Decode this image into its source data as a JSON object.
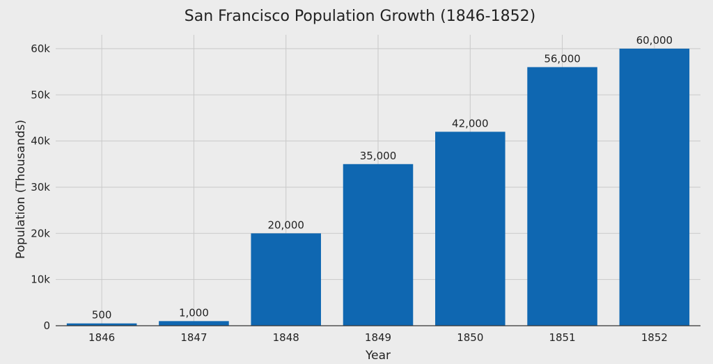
{
  "chart_data": {
    "type": "bar",
    "title": "San Francisco Population Growth (1846-1852)",
    "xlabel": "Year",
    "ylabel": "Population (Thousands)",
    "categories": [
      "1846",
      "1847",
      "1848",
      "1849",
      "1850",
      "1851",
      "1852"
    ],
    "values": [
      500,
      1000,
      20000,
      35000,
      42000,
      56000,
      60000
    ],
    "data_labels": [
      "500",
      "1,000",
      "20,000",
      "35,000",
      "42,000",
      "56,000",
      "60,000"
    ],
    "ylim": [
      0,
      63000
    ],
    "yticks": [
      0,
      10000,
      20000,
      30000,
      40000,
      50000,
      60000
    ],
    "ytick_labels": [
      "0",
      "10k",
      "20k",
      "30k",
      "40k",
      "50k",
      "60k"
    ],
    "grid": true,
    "legend": "none",
    "colors": {
      "bar": "#0f67b1",
      "background": "#ececec",
      "grid": "#c9c9c9"
    }
  }
}
